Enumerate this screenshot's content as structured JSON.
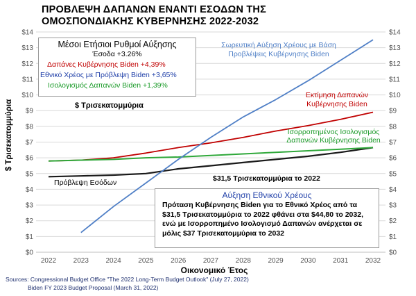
{
  "title": {
    "line1": "ΠΡΟΒΛΕΨΗ ΔΑΠΑΝΩΝ ΕΝΑΝΤΙ ΕΣΟΔΩΝ ΤΗΣ",
    "line2": "ΟΜΟΣΠΟΝΔΙΑΚΗΣ ΚΥΒΕΡΝΗΣΗΣ 2022-2032"
  },
  "colors": {
    "revenue": "#1a1a1a",
    "spending": "#c00000",
    "debt": "#4f7fc6",
    "balanced": "#2fa83a",
    "rev_text": "#000000",
    "spend_text": "#c00000",
    "debt_text": "#1f3fa8",
    "bal_text": "#1a9a28"
  },
  "rates_box": {
    "header": "Μέσοι Ετήσιοι Ρυθμοί Αύξησης",
    "revenue": "Έσοδα +3.26%",
    "spending": "Δαπάνες Κυβέρνησης  Biden +4,39%",
    "debt": "Εθνικό Χρέος με Πρόβλεψη Biden +3,65%",
    "balanced": "Ισολογισμός Δαπανών Biden +1,39%"
  },
  "unit_label": "$ Τρισεκατομμύρια",
  "annotations": {
    "debt": [
      "Σωρευτική Αύξηση Χρέους με Βάση",
      "Προβλέψεις Κυβέρνησης Biden"
    ],
    "spending": [
      "Εκτίμηση Δαπανών",
      "Κυβέρνησης Biden"
    ],
    "balanced": [
      "Ισορροπημένος Ισολογισμός",
      "Δαπανών Κυβέρνησης Biden"
    ],
    "revenue": "Πρόβλεψη Εσόδων",
    "debt_2022": "$31,5 Τρισεκατομμύρια το 2022"
  },
  "growth_box": {
    "header": "Αύξηση Εθνικού Χρέους",
    "body": "Πρόταση Κυβέρνησης Biden για το Εθνικό Χρέος από τα $31,5 Τρισεκατομμύρια το 2022 φθάνει στα $44,80 το 2032, ενώ με Ισορροπημένο Ισολογισμό Δαπανών ανέρχεται σε μόλις  $37 Τρισεκατομμύρια το 2032"
  },
  "sources": {
    "line1": "Sources: Congressional Budget Office \"The 2022 Long-Term Budget Outlook\" (July 27, 2022)",
    "line2": "Biden FY 2023 Budget Proposal (March 31, 2022)"
  },
  "chart_data": {
    "type": "line",
    "xlabel": "Οικονομικό Έτος",
    "ylabel": "$ Τρισεκατομμύρια",
    "y_unit": "$ Τρισεκατομμύρια",
    "x": [
      2022,
      2023,
      2024,
      2025,
      2026,
      2027,
      2028,
      2029,
      2030,
      2031,
      2032
    ],
    "ylim": [
      0,
      14
    ],
    "yticks_left": [
      "$0",
      "$1",
      "$2",
      "$3",
      "$4",
      "$5",
      "$6",
      "$7",
      "$8",
      "$9",
      "$10",
      "$11",
      "$12",
      "$13",
      "$14"
    ],
    "yticks_right": [
      "$0",
      "$1",
      "$2",
      "$3",
      "$4",
      "$5",
      "$6",
      "$7",
      "$8",
      "$9",
      "$10",
      "$11",
      "$12",
      "$13",
      "$14"
    ],
    "grid": "horizontal",
    "series": [
      {
        "key": "revenue",
        "values": [
          4.8,
          4.85,
          4.9,
          5.0,
          5.3,
          5.5,
          5.7,
          5.9,
          6.1,
          6.35,
          6.65
        ]
      },
      {
        "key": "spending",
        "values": [
          5.8,
          5.85,
          6.0,
          6.3,
          6.65,
          6.95,
          7.3,
          7.7,
          8.05,
          8.45,
          8.9
        ]
      },
      {
        "key": "balanced",
        "values": [
          5.8,
          5.85,
          5.9,
          6.0,
          6.05,
          6.15,
          6.25,
          6.35,
          6.45,
          6.55,
          6.65
        ]
      },
      {
        "key": "debt",
        "values": [
          null,
          1.25,
          2.9,
          4.4,
          5.9,
          7.3,
          8.6,
          9.7,
          10.9,
          12.2,
          13.5
        ]
      }
    ]
  }
}
